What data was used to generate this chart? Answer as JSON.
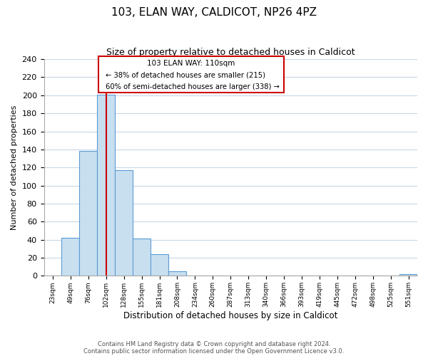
{
  "title": "103, ELAN WAY, CALDICOT, NP26 4PZ",
  "subtitle": "Size of property relative to detached houses in Caldicot",
  "xlabel": "Distribution of detached houses by size in Caldicot",
  "ylabel": "Number of detached properties",
  "bar_labels": [
    "23sqm",
    "49sqm",
    "76sqm",
    "102sqm",
    "128sqm",
    "155sqm",
    "181sqm",
    "208sqm",
    "234sqm",
    "260sqm",
    "287sqm",
    "313sqm",
    "340sqm",
    "366sqm",
    "393sqm",
    "419sqm",
    "445sqm",
    "472sqm",
    "498sqm",
    "525sqm",
    "551sqm"
  ],
  "bar_values": [
    0,
    42,
    138,
    201,
    117,
    41,
    24,
    5,
    0,
    0,
    0,
    0,
    0,
    0,
    0,
    0,
    0,
    0,
    0,
    0,
    2
  ],
  "bar_color": "#c8dff0",
  "bar_edge_color": "#5b9bd5",
  "vline_color": "#cc0000",
  "vline_x_index": 3.5,
  "ylim": [
    0,
    240
  ],
  "yticks": [
    0,
    20,
    40,
    60,
    80,
    100,
    120,
    140,
    160,
    180,
    200,
    220,
    240
  ],
  "annotation_title": "103 ELAN WAY: 110sqm",
  "annotation_line1": "← 38% of detached houses are smaller (215)",
  "annotation_line2": "60% of semi-detached houses are larger (338) →",
  "footer1": "Contains HM Land Registry data © Crown copyright and database right 2024.",
  "footer2": "Contains public sector information licensed under the Open Government Licence v3.0.",
  "bg_color": "#ffffff",
  "grid_color": "#c8d8e8"
}
